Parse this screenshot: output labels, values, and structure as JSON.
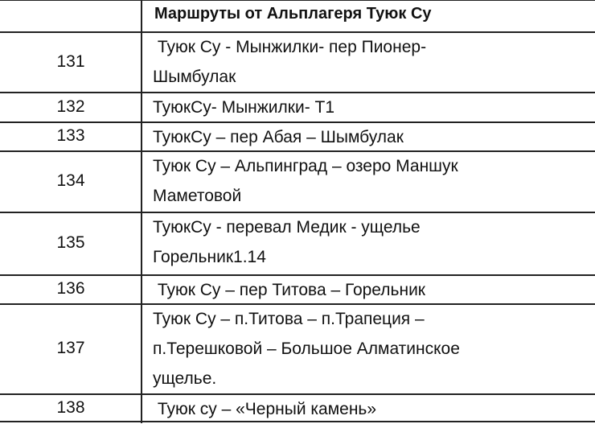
{
  "table": {
    "header": "Маршруты от Альплагеря Туюк Су",
    "rows": [
      {
        "number": "131",
        "lines": [
          " Туюк Су - Мынжилки- пер Пионер-",
          "Шымбулак"
        ]
      },
      {
        "number": "132",
        "lines": [
          "ТуюкСу- Мынжилки- Т1"
        ]
      },
      {
        "number": "133",
        "lines": [
          "ТуюкСу – пер Абая – Шымбулак"
        ]
      },
      {
        "number": "134",
        "lines": [
          "Туюк Су – Альпинград – озеро Маншук",
          "Маметовой"
        ]
      },
      {
        "number": "135",
        "lines": [
          "ТуюкСу - перевал Медик - ущелье",
          "Горельник1.14"
        ]
      },
      {
        "number": "136",
        "lines": [
          " Туюк Су – пер Титова – Горельник"
        ]
      },
      {
        "number": "137",
        "lines": [
          "Туюк Су – п.Титова – п.Трапеция –",
          "п.Терешковой – Большое Алматинское",
          "ущелье."
        ]
      },
      {
        "number": "138",
        "lines": [
          " Туюк су – «Черный камень»"
        ]
      }
    ]
  }
}
